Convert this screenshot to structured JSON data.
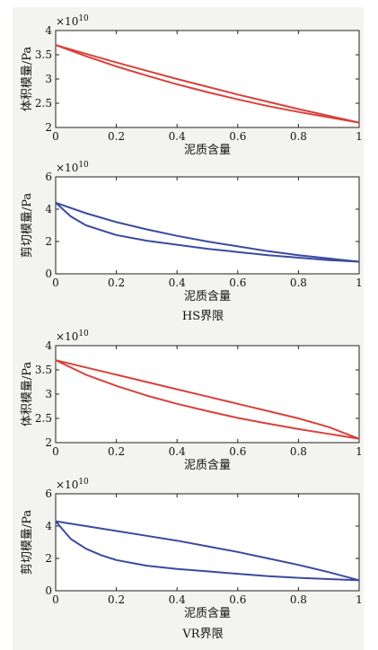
{
  "colors": {
    "red": "#d9413a",
    "blue": "#3a4a9f"
  },
  "captions": [
    "HS界限",
    "VR界限"
  ],
  "chart_data": [
    {
      "type": "line",
      "xlabel": "泥质含量",
      "ylabel": "体积模量/Pa",
      "multiplier": "×10",
      "multiplier_exp": "10",
      "xlim": [
        0,
        1
      ],
      "ylim": [
        2,
        4
      ],
      "xticks": [
        "0",
        "0.2",
        "0.4",
        "0.6",
        "0.8",
        "1"
      ],
      "yticks": [
        "2",
        "2.5",
        "3",
        "3.5",
        "4"
      ],
      "series": [
        {
          "color": "red",
          "x": [
            0,
            0.1,
            0.2,
            0.3,
            0.4,
            0.5,
            0.6,
            0.7,
            0.8,
            0.9,
            1.0
          ],
          "y": [
            3.7,
            3.52,
            3.34,
            3.17,
            3.0,
            2.84,
            2.68,
            2.53,
            2.38,
            2.24,
            2.1
          ]
        },
        {
          "color": "red",
          "x": [
            0,
            0.1,
            0.2,
            0.3,
            0.4,
            0.5,
            0.6,
            0.7,
            0.8,
            0.9,
            1.0
          ],
          "y": [
            3.7,
            3.47,
            3.26,
            3.07,
            2.89,
            2.73,
            2.58,
            2.44,
            2.32,
            2.21,
            2.1
          ]
        }
      ]
    },
    {
      "type": "line",
      "xlabel": "泥质含量",
      "ylabel": "剪切模量/Pa",
      "multiplier": "×10",
      "multiplier_exp": "10",
      "xlim": [
        0,
        1
      ],
      "ylim": [
        0,
        6
      ],
      "xticks": [
        "0",
        "0.2",
        "0.4",
        "0.6",
        "0.8",
        "1"
      ],
      "yticks": [
        "0",
        "2",
        "4",
        "6"
      ],
      "series": [
        {
          "color": "blue",
          "x": [
            0,
            0.1,
            0.2,
            0.3,
            0.4,
            0.5,
            0.6,
            0.7,
            0.8,
            0.9,
            1.0
          ],
          "y": [
            4.4,
            3.75,
            3.2,
            2.75,
            2.35,
            2.0,
            1.7,
            1.4,
            1.15,
            0.95,
            0.75
          ]
        },
        {
          "color": "blue",
          "x": [
            0,
            0.05,
            0.1,
            0.2,
            0.3,
            0.4,
            0.5,
            0.6,
            0.7,
            0.8,
            0.9,
            1.0
          ],
          "y": [
            4.4,
            3.55,
            3.0,
            2.4,
            2.05,
            1.8,
            1.55,
            1.35,
            1.15,
            1.0,
            0.85,
            0.75
          ]
        }
      ]
    },
    {
      "type": "line",
      "xlabel": "泥质含量",
      "ylabel": "体积模量/Pa",
      "multiplier": "×10",
      "multiplier_exp": "10",
      "xlim": [
        0,
        1
      ],
      "ylim": [
        2,
        4
      ],
      "xticks": [
        "0",
        "0.2",
        "0.4",
        "0.6",
        "0.8",
        "1"
      ],
      "yticks": [
        "2",
        "2.5",
        "3",
        "3.5",
        "4"
      ],
      "series": [
        {
          "color": "red",
          "x": [
            0,
            0.1,
            0.2,
            0.3,
            0.4,
            0.5,
            0.6,
            0.7,
            0.8,
            0.9,
            1.0
          ],
          "y": [
            3.7,
            3.55,
            3.4,
            3.25,
            3.1,
            2.95,
            2.8,
            2.65,
            2.5,
            2.32,
            2.08
          ]
        },
        {
          "color": "red",
          "x": [
            0,
            0.1,
            0.2,
            0.3,
            0.4,
            0.5,
            0.6,
            0.7,
            0.8,
            0.9,
            1.0
          ],
          "y": [
            3.7,
            3.4,
            3.17,
            2.97,
            2.8,
            2.65,
            2.51,
            2.39,
            2.28,
            2.18,
            2.08
          ]
        }
      ]
    },
    {
      "type": "line",
      "xlabel": "泥质含量",
      "ylabel": "剪切模量/Pa",
      "multiplier": "×10",
      "multiplier_exp": "10",
      "xlim": [
        0,
        1
      ],
      "ylim": [
        0,
        6
      ],
      "xticks": [
        "0",
        "0.2",
        "0.4",
        "0.6",
        "0.8",
        "1"
      ],
      "yticks": [
        "0",
        "2",
        "4",
        "6"
      ],
      "series": [
        {
          "color": "blue",
          "x": [
            0,
            0.1,
            0.2,
            0.3,
            0.4,
            0.5,
            0.6,
            0.7,
            0.8,
            0.9,
            1.0
          ],
          "y": [
            4.3,
            4.0,
            3.7,
            3.4,
            3.1,
            2.75,
            2.4,
            2.0,
            1.6,
            1.15,
            0.65
          ]
        },
        {
          "color": "blue",
          "x": [
            0,
            0.05,
            0.1,
            0.15,
            0.2,
            0.3,
            0.4,
            0.5,
            0.6,
            0.7,
            0.8,
            0.9,
            1.0
          ],
          "y": [
            4.3,
            3.2,
            2.6,
            2.2,
            1.9,
            1.55,
            1.35,
            1.2,
            1.05,
            0.9,
            0.8,
            0.72,
            0.65
          ]
        }
      ]
    }
  ]
}
